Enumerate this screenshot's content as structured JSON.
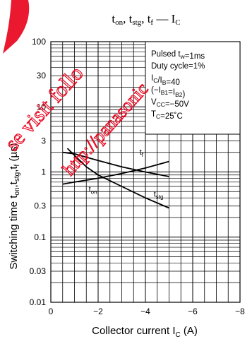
{
  "chart_data": {
    "type": "line",
    "title": {
      "main": "t",
      "sub1": "on",
      "sep1": ", t",
      "sub2": "stg",
      "sep2": ", t",
      "sub3": "f",
      "dash": " — I",
      "sub4": "C"
    },
    "ylabel": {
      "text": "Switching time  ",
      "sym": "t",
      "s1": "on",
      "c1": ",t",
      "s2": "stg",
      "c2": ",t",
      "s3": "f",
      "unit": "  (µs)"
    },
    "xlabel": {
      "text": "Collector current   I",
      "sub": "C",
      "unit": "   (A)"
    },
    "xlim": [
      0,
      -8
    ],
    "ylim": [
      0.01,
      100
    ],
    "yscale": "log",
    "grid": true,
    "x_ticks": [
      "0",
      "−2",
      "−4",
      "−6",
      "−8"
    ],
    "x_tick_values": [
      0,
      -2,
      -4,
      -6,
      -8
    ],
    "y_ticks": [
      "0.01",
      "0.03",
      "0.1",
      "0.3",
      "1",
      "3",
      "10",
      "30",
      "100"
    ],
    "y_tick_values": [
      0.01,
      0.03,
      0.1,
      0.3,
      1,
      3,
      10,
      30,
      100
    ],
    "conditions": [
      {
        "t": "Pulsed t",
        "sub": "w",
        "rest": "=1ms"
      },
      {
        "t": "Duty cycle=1%",
        "sub": "",
        "rest": ""
      },
      {
        "t": "I",
        "sub": "C",
        "rest": "/I",
        "sub2": "B",
        "rest2": "=40"
      },
      {
        "t": "(−I",
        "sub": "B1",
        "rest": "=I",
        "sub2": "B2",
        "rest2": ")"
      },
      {
        "t": "V",
        "sub": "CC",
        "rest": "=−50V"
      },
      {
        "t": "T",
        "sub": "C",
        "rest": "=25˚C"
      }
    ],
    "series": [
      {
        "name": "t_on",
        "label": "t",
        "label_sub": "on",
        "x": [
          -0.5,
          -1.0,
          -2.0,
          -3.0,
          -4.0,
          -5.0
        ],
        "y": [
          2.0,
          1.9,
          1.5,
          1.2,
          1.0,
          0.85
        ]
      },
      {
        "name": "t_stg",
        "label": "t",
        "label_sub": "stg",
        "x": [
          -0.7,
          -1.0,
          -1.5,
          -2.0,
          -3.0,
          -4.0,
          -5.0
        ],
        "y": [
          2.3,
          1.8,
          1.2,
          0.9,
          0.6,
          0.4,
          0.28
        ]
      },
      {
        "name": "t_f",
        "label": "t",
        "label_sub": "f",
        "x": [
          -0.5,
          -1.0,
          -2.0,
          -3.0,
          -4.0,
          -5.0
        ],
        "y": [
          0.65,
          0.7,
          0.8,
          0.95,
          1.15,
          1.45
        ]
      }
    ]
  },
  "watermarks": {
    "red_text": "se visit follo",
    "red_url": "http://panasonic"
  },
  "colors": {
    "grid": "#000000",
    "watermark": "#e8001a",
    "curve": "#000000"
  }
}
